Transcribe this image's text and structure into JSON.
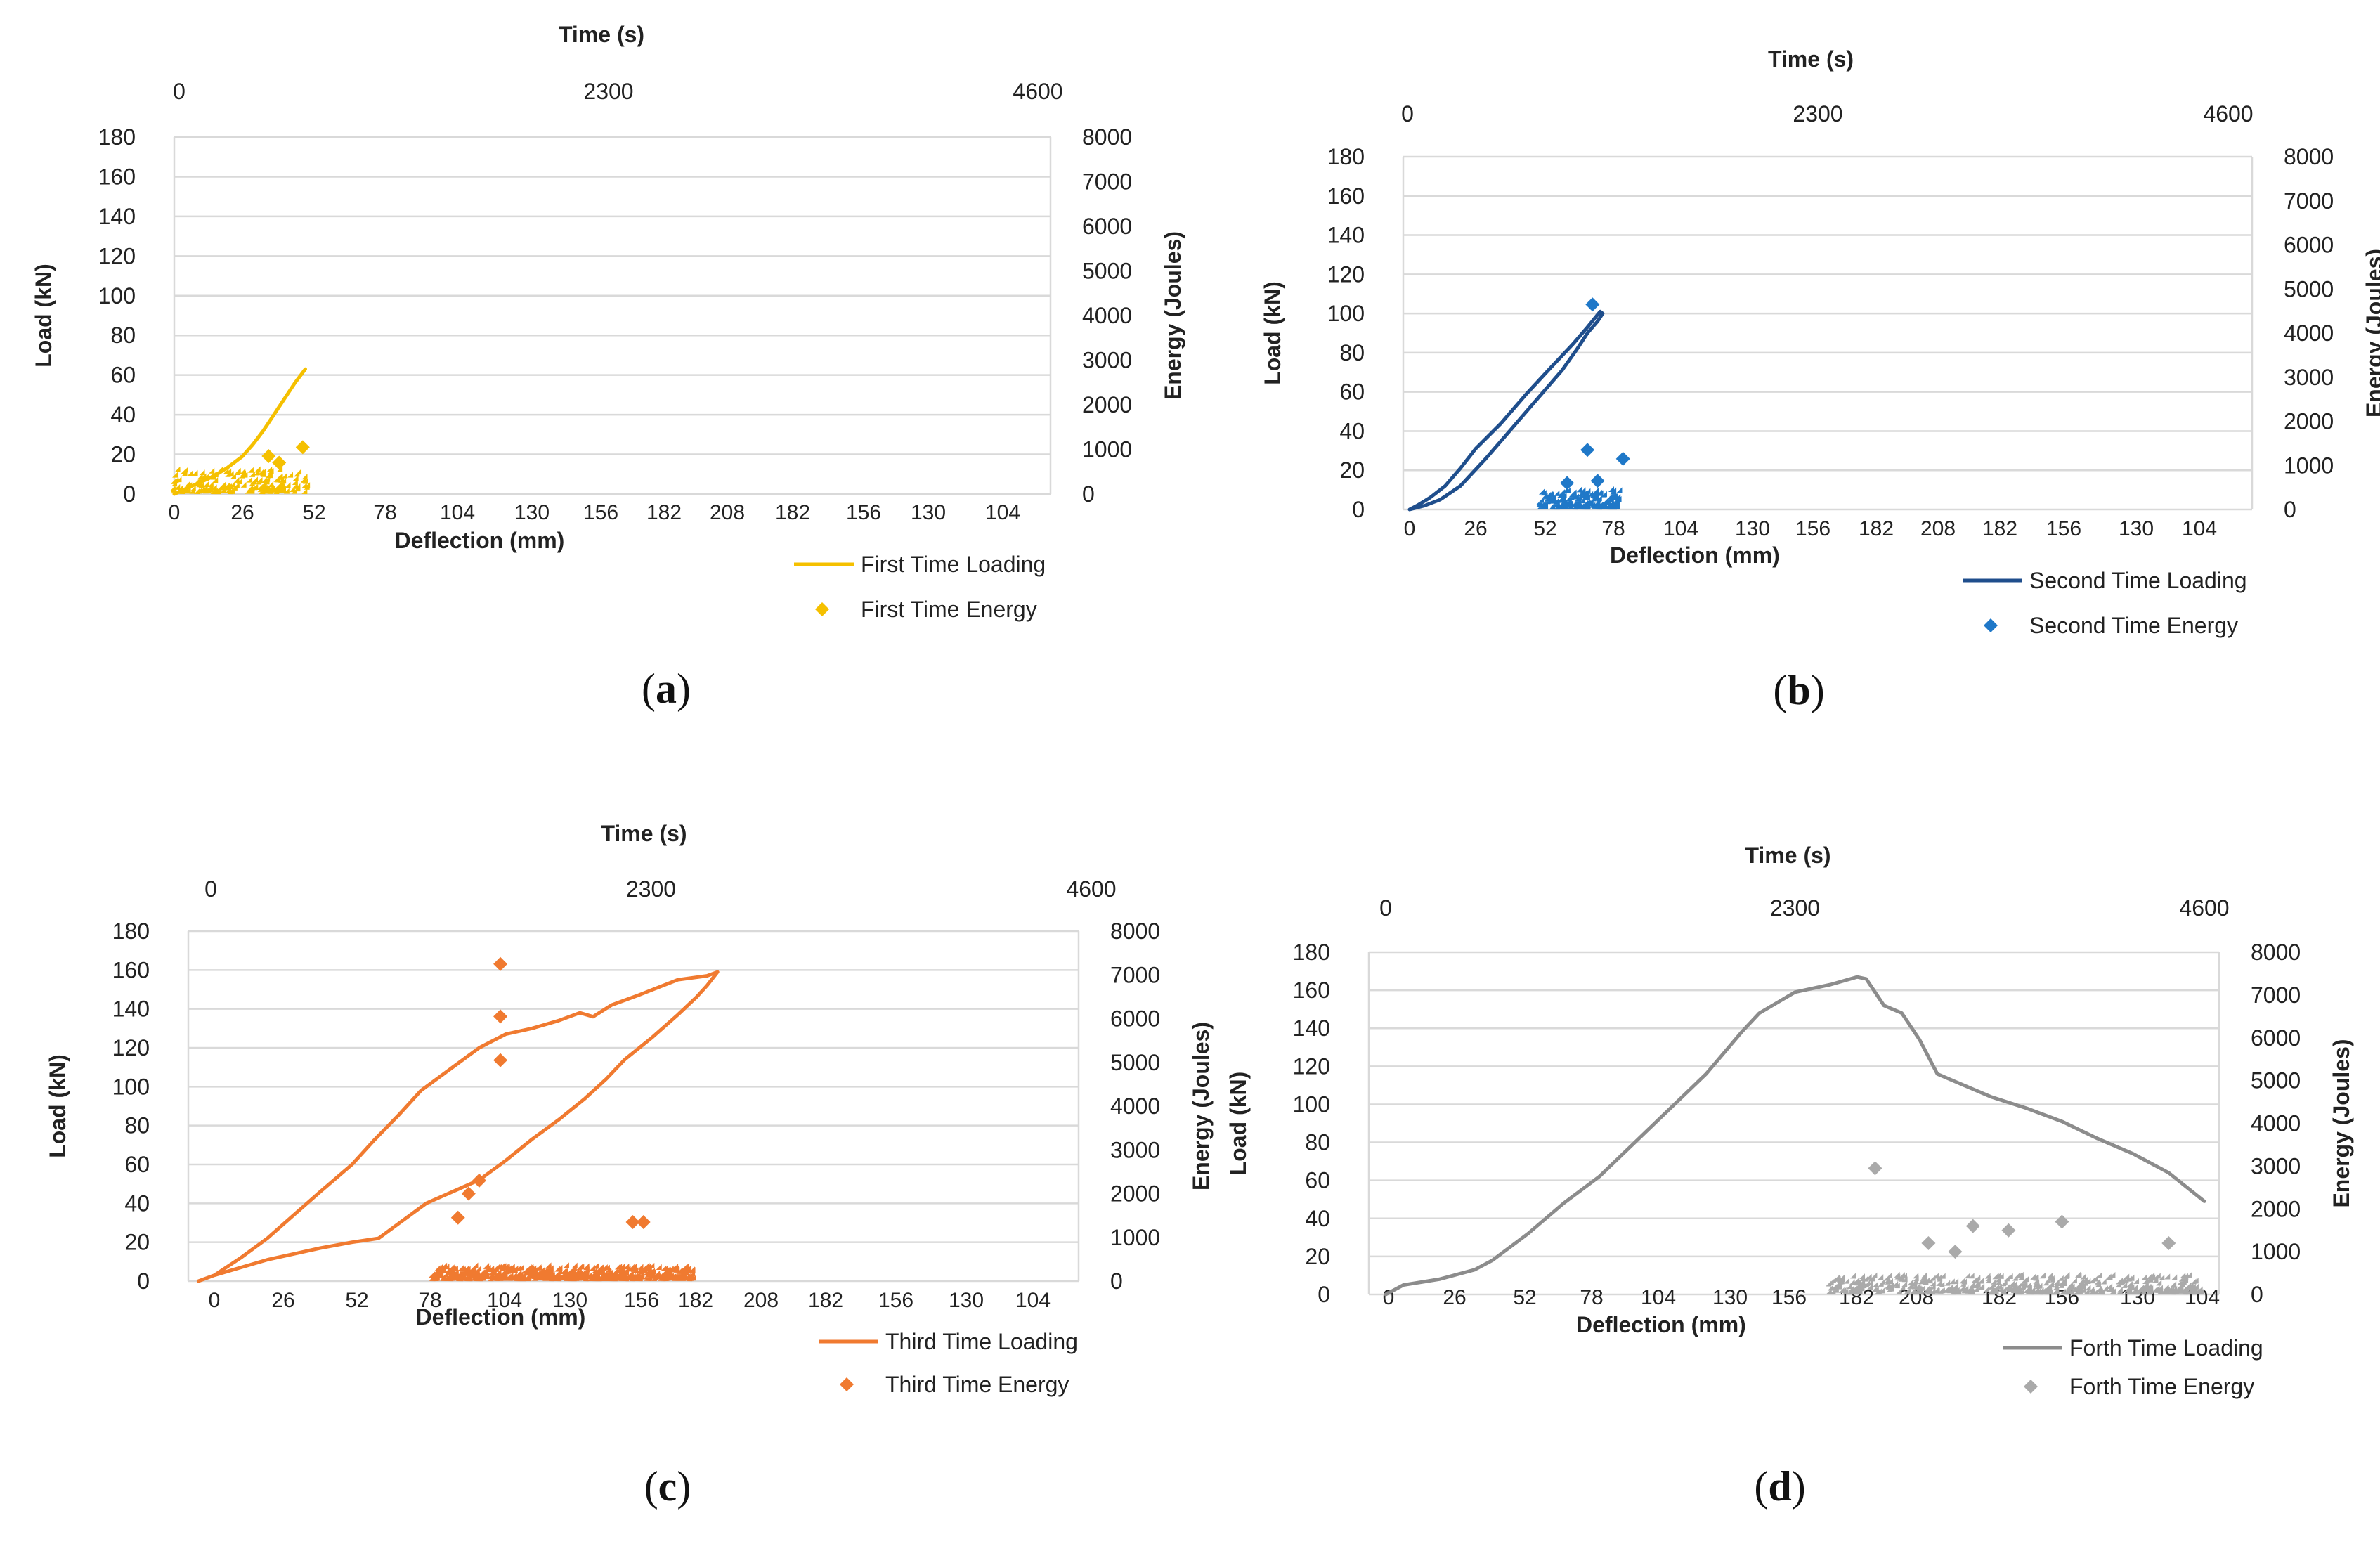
{
  "figure": {
    "panel_labels": [
      "(a)",
      "(b)",
      "(c)",
      "(d)"
    ]
  },
  "chart_data": [
    {
      "type": "line+scatter",
      "panel": "(a)",
      "top_axis": {
        "label": "Time (s)",
        "ticks": [
          "0",
          "2300",
          "4600"
        ]
      },
      "bottom_axis": {
        "label": "Deflection (mm)",
        "ticks": [
          "0",
          "26",
          "52",
          "78",
          "104",
          "130",
          "156",
          "182",
          "208",
          "182",
          "156",
          "130",
          "104"
        ]
      },
      "left_axis": {
        "label": "Load (kN)",
        "ticks": [
          "0",
          "20",
          "40",
          "60",
          "80",
          "100",
          "120",
          "140",
          "160",
          "180"
        ],
        "range": [
          0,
          180
        ]
      },
      "right_axis": {
        "label": "Energy (Joules)",
        "ticks": [
          "0",
          "1000",
          "2000",
          "3000",
          "4000",
          "5000",
          "6000",
          "7000",
          "8000"
        ],
        "range": [
          0,
          8000
        ]
      },
      "grid": true,
      "legend_position": "bottom-right",
      "colors": {
        "loading": "#F5C000",
        "energy": "#F5C000"
      },
      "series": [
        {
          "name": "First Time Loading",
          "kind": "line",
          "x_deflection": [
            0,
            5,
            10,
            15,
            20,
            26,
            30,
            34,
            38,
            42,
            46,
            50
          ],
          "y_load": [
            0,
            3,
            6,
            9,
            13,
            19,
            25,
            32,
            40,
            48,
            56,
            63
          ]
        },
        {
          "name": "First Time Energy",
          "kind": "scatter",
          "deflection_range": [
            0,
            52
          ],
          "typical_energy_range": [
            0,
            500
          ],
          "peaks": [
            {
              "x": 36,
              "y": 850
            },
            {
              "x": 49,
              "y": 1050
            },
            {
              "x": 40,
              "y": 700
            }
          ]
        }
      ]
    },
    {
      "type": "line+scatter",
      "panel": "(b)",
      "top_axis": {
        "label": "Time (s)",
        "ticks": [
          "0",
          "2300",
          "4600"
        ]
      },
      "bottom_axis": {
        "label": "Deflection (mm)",
        "ticks": [
          "0",
          "26",
          "52",
          "78",
          "104",
          "130",
          "156",
          "182",
          "208",
          "182",
          "156",
          "130",
          "104"
        ]
      },
      "left_axis": {
        "label": "Load (kN)",
        "ticks": [
          "0",
          "20",
          "40",
          "60",
          "80",
          "100",
          "120",
          "140",
          "160",
          "180"
        ],
        "range": [
          0,
          180
        ]
      },
      "right_axis": {
        "label": "Energy (Joules)",
        "ticks": [
          "0",
          "1000",
          "2000",
          "3000",
          "4000",
          "5000",
          "6000",
          "7000",
          "8000"
        ],
        "range": [
          0,
          8000
        ]
      },
      "grid": true,
      "legend_position": "bottom-right",
      "colors": {
        "loading": "#1F4E8C",
        "energy": "#1F78C8"
      },
      "series": [
        {
          "name": "Second Time Loading",
          "kind": "line",
          "x_deflection": [
            0,
            6,
            12,
            20,
            30,
            40,
            50,
            60,
            66,
            70,
            74,
            76,
            75,
            70,
            64,
            56,
            46,
            36,
            26,
            20,
            14,
            8,
            3,
            0
          ],
          "y_load": [
            0,
            2,
            5,
            12,
            26,
            41,
            56,
            71,
            82,
            90,
            96,
            100,
            101,
            93,
            84,
            73,
            59,
            44,
            31,
            21,
            12,
            6,
            2,
            0
          ]
        },
        {
          "name": "Second Time Energy",
          "kind": "scatter",
          "deflection_range": [
            52,
            84
          ],
          "typical_energy_range": [
            0,
            400
          ],
          "peaks": [
            {
              "x": 72,
              "y": 4650
            },
            {
              "x": 70,
              "y": 1350
            },
            {
              "x": 84,
              "y": 1150
            },
            {
              "x": 74,
              "y": 650
            },
            {
              "x": 62,
              "y": 600
            }
          ]
        }
      ]
    },
    {
      "type": "line+scatter",
      "panel": "(c)",
      "top_axis": {
        "label": "Time (s)",
        "ticks": [
          "0",
          "2300",
          "4600"
        ]
      },
      "bottom_axis": {
        "label": "Deflection (mm)",
        "ticks": [
          "0",
          "26",
          "52",
          "78",
          "104",
          "130",
          "156",
          "182",
          "208",
          "182",
          "156",
          "130",
          "104"
        ]
      },
      "left_axis": {
        "label": "Load (kN)",
        "ticks": [
          "0",
          "20",
          "40",
          "60",
          "80",
          "100",
          "120",
          "140",
          "160",
          "180"
        ],
        "range": [
          0,
          180
        ]
      },
      "right_axis": {
        "label": "Energy (Joules)",
        "ticks": [
          "0",
          "1000",
          "2000",
          "3000",
          "4000",
          "5000",
          "6000",
          "7000",
          "8000"
        ],
        "range": [
          0,
          8000
        ]
      },
      "grid": true,
      "legend_position": "bottom-right",
      "colors": {
        "loading": "#F07A30",
        "energy": "#F07A30"
      },
      "series": [
        {
          "name": "Third Time Loading",
          "kind": "line",
          "x_deflection": [
            -6,
            0,
            10,
            20,
            30,
            40,
            52,
            60,
            70,
            78,
            90,
            100,
            110,
            120,
            130,
            138,
            143,
            150,
            160,
            175,
            186,
            190,
            186,
            182,
            175,
            165,
            155,
            148,
            140,
            130,
            120,
            110,
            100,
            90,
            80,
            70,
            62,
            52,
            40,
            30,
            20,
            10,
            0,
            -6
          ],
          "y_load": [
            0,
            3,
            12,
            22,
            34,
            46,
            60,
            72,
            86,
            98,
            110,
            120,
            127,
            130,
            134,
            138,
            136,
            142,
            147,
            155,
            157,
            159,
            152,
            146,
            137,
            125,
            114,
            104,
            94,
            83,
            73,
            62,
            52,
            46,
            40,
            30,
            22,
            20,
            17,
            14,
            11,
            7,
            3,
            0
          ]
        },
        {
          "name": "Third Time Energy",
          "kind": "scatter",
          "deflection_range": [
            83,
            182
          ],
          "typical_energy_range": [
            0,
            300
          ],
          "peaks": [
            {
              "x": 108,
              "y": 7250
            },
            {
              "x": 108,
              "y": 6050
            },
            {
              "x": 108,
              "y": 5050
            },
            {
              "x": 100,
              "y": 2300
            },
            {
              "x": 96,
              "y": 2000
            },
            {
              "x": 158,
              "y": 1350
            },
            {
              "x": 162,
              "y": 1350
            },
            {
              "x": 92,
              "y": 1450
            }
          ]
        }
      ]
    },
    {
      "type": "line+scatter",
      "panel": "(d)",
      "top_axis": {
        "label": "Time (s)",
        "ticks": [
          "0",
          "2300",
          "4600"
        ]
      },
      "bottom_axis": {
        "label": "Deflection (mm)",
        "ticks": [
          "0",
          "26",
          "52",
          "78",
          "104",
          "130",
          "156",
          "182",
          "208",
          "182",
          "156",
          "130",
          "104"
        ]
      },
      "left_axis": {
        "label": "Load (kN)",
        "ticks": [
          "0",
          "20",
          "40",
          "60",
          "80",
          "100",
          "120",
          "140",
          "160",
          "180"
        ],
        "range": [
          0,
          180
        ]
      },
      "right_axis": {
        "label": "Energy (Joules)",
        "ticks": [
          "0",
          "1000",
          "2000",
          "3000",
          "4000",
          "5000",
          "6000",
          "7000",
          "8000"
        ],
        "range": [
          0,
          8000
        ]
      },
      "grid": true,
      "legend_position": "bottom-right",
      "colors": {
        "loading": "#8C8C8C",
        "energy": "#AAAAAA"
      },
      "series": [
        {
          "name": "Forth Time Loading",
          "kind": "line",
          "time_s": [
            0,
            100,
            300,
            500,
            600,
            800,
            1000,
            1200,
            1400,
            1600,
            1800,
            2000,
            2100,
            2300,
            2500,
            2650,
            2700,
            2800,
            2900,
            3000,
            3100,
            3200,
            3400,
            3600,
            3800,
            4000,
            4200,
            4400,
            4600
          ],
          "y_load": [
            0,
            5,
            8,
            13,
            18,
            32,
            48,
            62,
            80,
            98,
            116,
            138,
            148,
            159,
            163,
            167,
            166,
            152,
            148,
            134,
            116,
            112,
            104,
            98,
            91,
            82,
            74,
            64,
            49
          ]
        },
        {
          "name": "Forth Time Energy",
          "kind": "scatter",
          "time_range_s": [
            2500,
            4600
          ],
          "typical_energy_range": [
            0,
            400
          ],
          "peaks": [
            {
              "x": 2750,
              "y": 2950
            },
            {
              "x": 3800,
              "y": 1700
            },
            {
              "x": 3300,
              "y": 1600
            },
            {
              "x": 3500,
              "y": 1500
            },
            {
              "x": 3050,
              "y": 1200
            },
            {
              "x": 3200,
              "y": 1000
            },
            {
              "x": 4400,
              "y": 1200
            }
          ]
        }
      ]
    }
  ]
}
